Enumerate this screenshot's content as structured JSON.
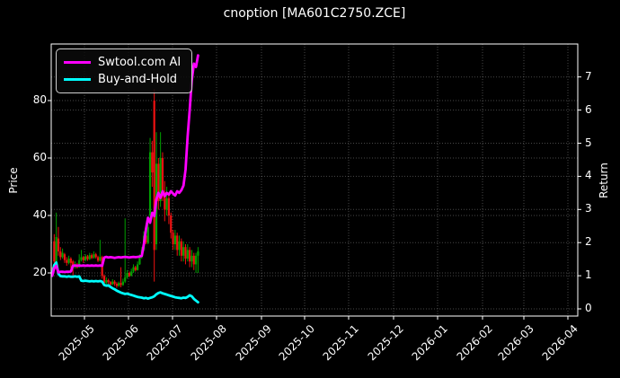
{
  "figure": {
    "title": "cnoption [MA601C2750.ZCE]",
    "background": "#000000"
  },
  "legend": {
    "items": [
      {
        "label": "Swtool.com AI",
        "color": "#ff00ff"
      },
      {
        "label": "Buy-and-Hold",
        "color": "#00ffff"
      }
    ]
  },
  "chart_data": {
    "type": "candlestick+line",
    "title": "cnoption [MA601C2750.ZCE]",
    "grid": true,
    "legend_position": "upper left",
    "x_axis": {
      "tick_labels": [
        "2025-05",
        "2025-06",
        "2025-07",
        "2025-08",
        "2025-09",
        "2025-10",
        "2025-11",
        "2025-12",
        "2026-01",
        "2026-02",
        "2026-03",
        "2026-04"
      ],
      "tick_x": [
        94,
        143,
        192,
        241,
        291,
        339,
        388,
        438,
        487,
        537,
        583,
        632
      ]
    },
    "left_axis": {
      "label": "Price",
      "ticks": [
        20,
        40,
        60,
        80
      ],
      "range_approx": [
        5,
        100
      ]
    },
    "right_axis": {
      "label": "Return",
      "ticks": [
        0,
        1,
        2,
        3,
        4,
        5,
        6,
        7
      ],
      "range_approx": [
        -0.2,
        8.0
      ]
    },
    "colors": {
      "up": "#00a000",
      "down": "#ee1111",
      "grid": "rgba(255,255,255,0.28)",
      "spine": "#ffffff",
      "ai_line": "#ff00ff",
      "bh_line": "#00ffff"
    },
    "candles_ohlc": [
      [
        21.5,
        22,
        20.3,
        20.8
      ],
      [
        31,
        33.5,
        23,
        24
      ],
      [
        24,
        41,
        22.5,
        32.5
      ],
      [
        32,
        36,
        26,
        27.5
      ],
      [
        27.5,
        29,
        24.5,
        25.5
      ],
      [
        25.5,
        28.5,
        25,
        27
      ],
      [
        26.5,
        27,
        23.5,
        24.5
      ],
      [
        24.5,
        25.5,
        22.5,
        23.5
      ],
      [
        23.5,
        26,
        23,
        25
      ],
      [
        25,
        25.5,
        21.5,
        23.5
      ],
      [
        24,
        24.5,
        18.5,
        22
      ],
      [
        22,
        24,
        21.5,
        23
      ],
      [
        23,
        23.5,
        21.5,
        22
      ],
      [
        22,
        26.5,
        21.8,
        24.5
      ],
      [
        24.5,
        28,
        24,
        25.5
      ],
      [
        25.5,
        26,
        23.5,
        24.5
      ],
      [
        24.5,
        26.5,
        24,
        25.8
      ],
      [
        25.8,
        26.3,
        24.2,
        24.8
      ],
      [
        24.8,
        27,
        24.5,
        26.2
      ],
      [
        26.2,
        26.8,
        24.8,
        25.2
      ],
      [
        25.2,
        27.5,
        25,
        26.5
      ],
      [
        26.5,
        27,
        25,
        25.5
      ],
      [
        25.5,
        26,
        23.8,
        24.3
      ],
      [
        24.3,
        31.5,
        24,
        25.6
      ],
      [
        25.5,
        26,
        18,
        19
      ],
      [
        19,
        19.5,
        15.5,
        16.5
      ],
      [
        16.5,
        18.5,
        16,
        17.5
      ],
      [
        17.5,
        18,
        16.2,
        16.8
      ],
      [
        16.8,
        17.2,
        15,
        16
      ],
      [
        16,
        17.8,
        15.8,
        17
      ],
      [
        17,
        17.5,
        15.5,
        16.2
      ],
      [
        16.2,
        16.8,
        14.8,
        15.5
      ],
      [
        15.5,
        17,
        15.2,
        16.5
      ],
      [
        16.5,
        22,
        15,
        15.8
      ],
      [
        15.8,
        18,
        15.5,
        17
      ],
      [
        17,
        39,
        16.5,
        18.5
      ],
      [
        18.5,
        21,
        18,
        20
      ],
      [
        20,
        20.5,
        18.5,
        19
      ],
      [
        19,
        21.5,
        18.8,
        20.5
      ],
      [
        20.5,
        23,
        20,
        22
      ],
      [
        22,
        22.5,
        20.5,
        21
      ],
      [
        21,
        24,
        20.8,
        23
      ],
      [
        23,
        26.5,
        22.8,
        25.5
      ],
      [
        25.5,
        29,
        25,
        28
      ],
      [
        28,
        34.5,
        27.5,
        33
      ],
      [
        33,
        35,
        30,
        30.5
      ],
      [
        30.5,
        38,
        30,
        36
      ],
      [
        40,
        67,
        38,
        62
      ],
      [
        62,
        66,
        50,
        55
      ],
      [
        80,
        84,
        17,
        28
      ],
      [
        30,
        69,
        28,
        58
      ],
      [
        58,
        60,
        42,
        45
      ],
      [
        45,
        69,
        43,
        60
      ],
      [
        60,
        62,
        45,
        48
      ],
      [
        48,
        52,
        38,
        42
      ],
      [
        42,
        50,
        40,
        46
      ],
      [
        46,
        48,
        37,
        40
      ],
      [
        40,
        41,
        32,
        34
      ],
      [
        34,
        35,
        28,
        30
      ],
      [
        30,
        35,
        28,
        33
      ],
      [
        33,
        34,
        26,
        28
      ],
      [
        28,
        33,
        26,
        31
      ],
      [
        31,
        32,
        24,
        26
      ],
      [
        26,
        31,
        24,
        29
      ],
      [
        29,
        30,
        23,
        25
      ],
      [
        25,
        30,
        24,
        28
      ],
      [
        28,
        29,
        22,
        24
      ],
      [
        24,
        28,
        22,
        26
      ],
      [
        26,
        27,
        21,
        23
      ],
      [
        23,
        27,
        20,
        26
      ],
      [
        26,
        29,
        20,
        27.5
      ]
    ],
    "series": [
      {
        "name": "Swtool.com AI",
        "axis": "return",
        "color": "#ff00ff",
        "values": [
          1.0,
          1.22,
          1.3,
          1.1,
          1.12,
          1.12,
          1.11,
          1.12,
          1.12,
          1.13,
          1.3,
          1.31,
          1.3,
          1.31,
          1.3,
          1.31,
          1.3,
          1.31,
          1.3,
          1.31,
          1.3,
          1.31,
          1.3,
          1.31,
          1.3,
          1.55,
          1.57,
          1.55,
          1.56,
          1.55,
          1.54,
          1.55,
          1.56,
          1.55,
          1.56,
          1.57,
          1.56,
          1.55,
          1.56,
          1.57,
          1.56,
          1.57,
          1.58,
          1.6,
          1.95,
          2.4,
          2.75,
          2.6,
          2.9,
          2.8,
          3.3,
          3.5,
          3.35,
          3.55,
          3.4,
          3.5,
          3.45,
          3.55,
          3.48,
          3.42,
          3.55,
          3.5,
          3.58,
          3.72,
          4.2,
          5.2,
          6.0,
          6.9,
          7.4,
          7.3,
          7.65
        ]
      },
      {
        "name": "Buy-and-Hold",
        "axis": "return",
        "color": "#00ffff",
        "values": [
          1.0,
          1.32,
          1.4,
          1.06,
          0.99,
          0.98,
          0.98,
          0.97,
          0.98,
          0.97,
          0.97,
          0.98,
          0.97,
          0.98,
          0.85,
          0.84,
          0.85,
          0.84,
          0.83,
          0.84,
          0.83,
          0.84,
          0.83,
          0.84,
          0.82,
          0.72,
          0.7,
          0.71,
          0.66,
          0.62,
          0.59,
          0.55,
          0.52,
          0.49,
          0.47,
          0.45,
          0.46,
          0.44,
          0.42,
          0.4,
          0.38,
          0.36,
          0.35,
          0.34,
          0.32,
          0.33,
          0.31,
          0.33,
          0.35,
          0.38,
          0.44,
          0.48,
          0.5,
          0.47,
          0.45,
          0.43,
          0.41,
          0.39,
          0.37,
          0.35,
          0.34,
          0.33,
          0.32,
          0.34,
          0.33,
          0.36,
          0.41,
          0.38,
          0.3,
          0.25,
          0.2
        ]
      }
    ]
  }
}
